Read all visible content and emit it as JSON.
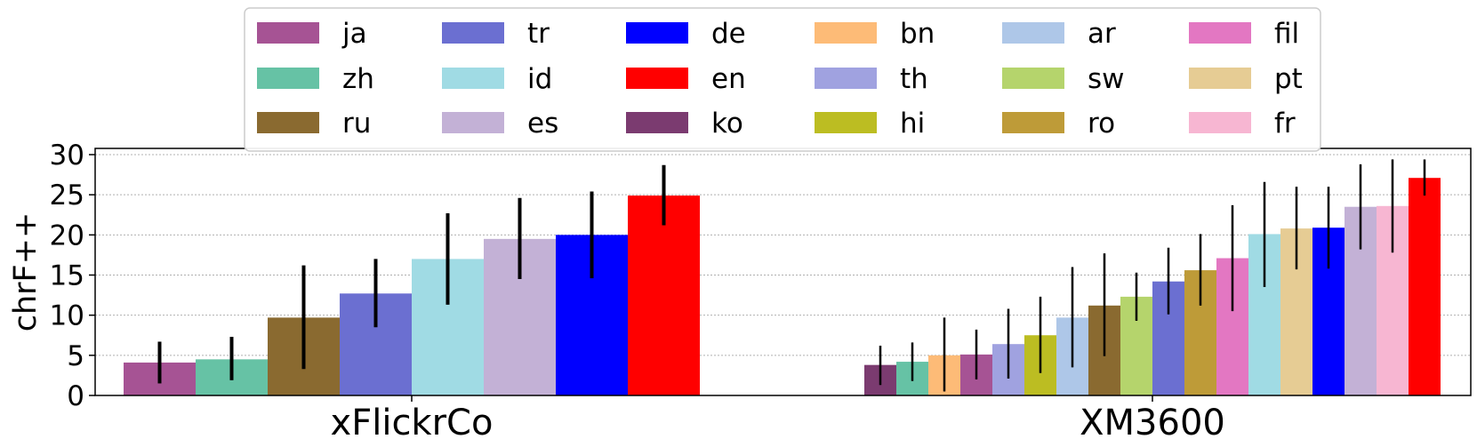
{
  "chart_data": {
    "type": "bar",
    "title": "",
    "xlabel": "",
    "ylabel": "chrF++",
    "ylim": [
      0,
      30
    ],
    "yticks": [
      0,
      5,
      10,
      15,
      20,
      25,
      30
    ],
    "grid": "y-dotted",
    "legend_position": "top-center",
    "legend": [
      {
        "name": "ja",
        "color": "#a65394"
      },
      {
        "name": "zh",
        "color": "#66c2a5"
      },
      {
        "name": "ru",
        "color": "#8a6a30"
      },
      {
        "name": "tr",
        "color": "#6b6fd1"
      },
      {
        "name": "id",
        "color": "#a0dbe4"
      },
      {
        "name": "es",
        "color": "#c3b1d6"
      },
      {
        "name": "de",
        "color": "#0000ff"
      },
      {
        "name": "en",
        "color": "#ff0000"
      },
      {
        "name": "ko",
        "color": "#7b3b70"
      },
      {
        "name": "bn",
        "color": "#fdbb77"
      },
      {
        "name": "th",
        "color": "#a0a2e0"
      },
      {
        "name": "hi",
        "color": "#bcbd22"
      },
      {
        "name": "ar",
        "color": "#aec7e8"
      },
      {
        "name": "sw",
        "color": "#b5d46c"
      },
      {
        "name": "ro",
        "color": "#be9b38"
      },
      {
        "name": "fil",
        "color": "#e377c2"
      },
      {
        "name": "pt",
        "color": "#e6cc94"
      },
      {
        "name": "fr",
        "color": "#f7b6d2"
      }
    ],
    "groups": [
      {
        "category": "xFlickrCo",
        "bars": [
          {
            "lang": "ja",
            "value": 4.1,
            "err_low": 1.5,
            "err_high": 6.7
          },
          {
            "lang": "zh",
            "value": 4.5,
            "err_low": 1.9,
            "err_high": 7.3
          },
          {
            "lang": "ru",
            "value": 9.7,
            "err_low": 3.3,
            "err_high": 16.2
          },
          {
            "lang": "tr",
            "value": 12.7,
            "err_low": 8.5,
            "err_high": 17.0
          },
          {
            "lang": "id",
            "value": 17.0,
            "err_low": 11.3,
            "err_high": 22.7
          },
          {
            "lang": "es",
            "value": 19.5,
            "err_low": 14.5,
            "err_high": 24.6
          },
          {
            "lang": "de",
            "value": 20.0,
            "err_low": 14.6,
            "err_high": 25.4
          },
          {
            "lang": "en",
            "value": 24.9,
            "err_low": 21.2,
            "err_high": 28.7
          }
        ]
      },
      {
        "category": "XM3600",
        "bars": [
          {
            "lang": "ko",
            "value": 3.8,
            "err_low": 1.3,
            "err_high": 6.2
          },
          {
            "lang": "zh",
            "value": 4.2,
            "err_low": 1.8,
            "err_high": 6.6
          },
          {
            "lang": "bn",
            "value": 5.0,
            "err_low": 0.5,
            "err_high": 9.7
          },
          {
            "lang": "ja",
            "value": 5.1,
            "err_low": 2.0,
            "err_high": 8.2
          },
          {
            "lang": "th",
            "value": 6.4,
            "err_low": 2.1,
            "err_high": 10.8
          },
          {
            "lang": "hi",
            "value": 7.5,
            "err_low": 2.8,
            "err_high": 12.3
          },
          {
            "lang": "ar",
            "value": 9.7,
            "err_low": 3.5,
            "err_high": 16.0
          },
          {
            "lang": "ru",
            "value": 11.2,
            "err_low": 4.9,
            "err_high": 17.7
          },
          {
            "lang": "sw",
            "value": 12.3,
            "err_low": 9.3,
            "err_high": 15.3
          },
          {
            "lang": "tr",
            "value": 14.2,
            "err_low": 10.1,
            "err_high": 18.4
          },
          {
            "lang": "ro",
            "value": 15.6,
            "err_low": 11.2,
            "err_high": 20.1
          },
          {
            "lang": "fil",
            "value": 17.1,
            "err_low": 10.5,
            "err_high": 23.7
          },
          {
            "lang": "id",
            "value": 20.1,
            "err_low": 13.5,
            "err_high": 26.6
          },
          {
            "lang": "pt",
            "value": 20.8,
            "err_low": 15.7,
            "err_high": 26.0
          },
          {
            "lang": "de",
            "value": 20.9,
            "err_low": 15.8,
            "err_high": 26.0
          },
          {
            "lang": "es",
            "value": 23.5,
            "err_low": 18.2,
            "err_high": 28.8
          },
          {
            "lang": "fr",
            "value": 23.6,
            "err_low": 17.8,
            "err_high": 29.4
          },
          {
            "lang": "en",
            "value": 27.1,
            "err_low": 24.9,
            "err_high": 29.4
          }
        ]
      }
    ]
  }
}
